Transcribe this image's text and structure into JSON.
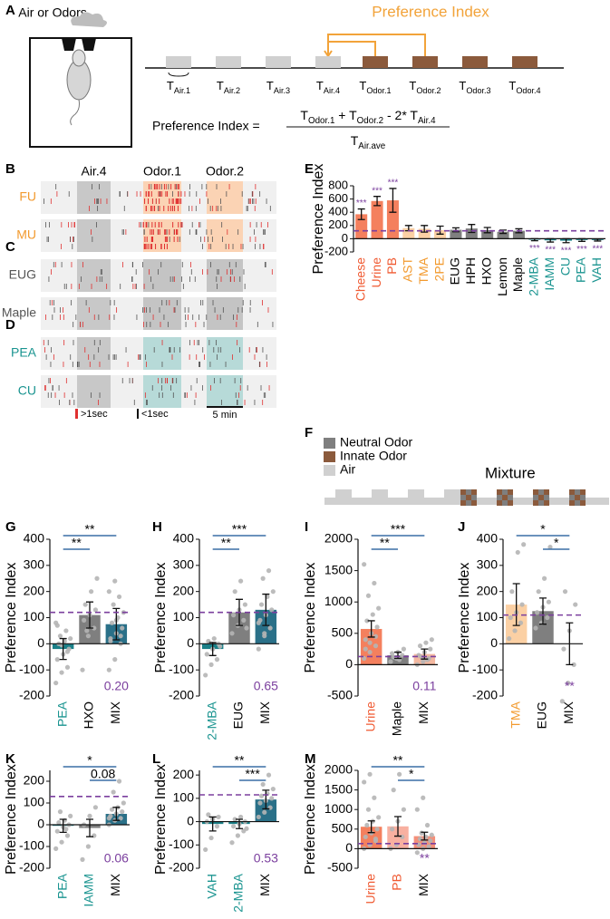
{
  "diagram_a": {
    "panel": "A",
    "source_label": "Air or Odors",
    "index_label": "Preference Index",
    "timeline": [
      {
        "main": "T",
        "sub": "Air.1"
      },
      {
        "main": "T",
        "sub": "Air.2"
      },
      {
        "main": "T",
        "sub": "Air.3"
      },
      {
        "main": "T",
        "sub": "Air.4"
      },
      {
        "main": "T",
        "sub": "Odor.1"
      },
      {
        "main": "T",
        "sub": "Odor.2"
      },
      {
        "main": "T",
        "sub": "Odor.3"
      },
      {
        "main": "T",
        "sub": "Odor.4"
      }
    ],
    "formula": {
      "lhs": "Preference Index =",
      "numerator": [
        {
          "main": "T",
          "sub": "Odor.1"
        },
        {
          "main": " + T",
          "sub": "Odor.2"
        },
        {
          "main": " - 2* T",
          "sub": "Air.4"
        }
      ],
      "denominator": {
        "main": "T",
        "sub": "Air.ave"
      }
    }
  },
  "raster": {
    "panels": [
      "B",
      "C",
      "D"
    ],
    "epochs": [
      "Air.4",
      "Odor.1",
      "Odor.2"
    ],
    "rows": [
      "FU",
      "MU",
      "EUG",
      "Maple",
      "PEA",
      "CU"
    ],
    "row_colors": [
      "#f29a2e",
      "#f29a2e",
      "#555555",
      "#555555",
      "#1a9490",
      "#1a9490"
    ],
    "odor_colors": [
      "#fbd3b4",
      "#fbd3b4",
      "#c4c4c4",
      "#c4c4c4",
      "#b7dad8",
      "#b7dad8"
    ],
    "legend": [
      ">1sec",
      "<1sec",
      "5 min"
    ]
  },
  "diagram_f": {
    "panel": "F",
    "legend": [
      "Neutral Odor",
      "Innate Odor",
      "Air"
    ],
    "legend_colors": [
      "#7f7f7f",
      "#8b5a3c",
      "#d0d0d0"
    ],
    "mixture_label": "Mixture"
  },
  "chart_data": [
    {
      "type": "bar",
      "panel": "E",
      "ylabel": "Preference Index",
      "categories": [
        "Cheese",
        "Urine",
        "PB",
        "AST",
        "TMA",
        "2PE",
        "EUG",
        "HPH",
        "HXO",
        "Lemon",
        "Maple",
        "2-MBA",
        "IAMM",
        "CU",
        "PEA",
        "VAH"
      ],
      "category_colors": [
        "#f05a32",
        "#f05a32",
        "#f05a32",
        "#f29a2e",
        "#f29a2e",
        "#f29a2e",
        "#000000",
        "#000000",
        "#000000",
        "#000000",
        "#000000",
        "#1a9490",
        "#1a9490",
        "#1a9490",
        "#1a9490",
        "#1a9490"
      ],
      "values": [
        370,
        570,
        580,
        160,
        150,
        130,
        135,
        155,
        130,
        105,
        120,
        -15,
        -25,
        -30,
        -20,
        -20
      ],
      "errors": [
        80,
        70,
        180,
        40,
        50,
        60,
        30,
        60,
        40,
        25,
        30,
        15,
        25,
        30,
        20,
        15
      ],
      "bar_colors": [
        "#f4805e",
        "#f4805e",
        "#f4805e",
        "#fbd0a4",
        "#fbd0a4",
        "#fbd0a4",
        "#7f7f7f",
        "#7f7f7f",
        "#7f7f7f",
        "#7f7f7f",
        "#7f7f7f",
        "#1a8088",
        "#1a8088",
        "#1a8088",
        "#1a8088",
        "#1a8088"
      ],
      "significance": [
        "***",
        "***",
        "***",
        null,
        null,
        null,
        null,
        null,
        null,
        null,
        null,
        "***",
        "***",
        "***",
        "***",
        "***"
      ],
      "significance_color": "#7b3f9e",
      "ylim": [
        -200,
        800
      ],
      "yticks": [
        -200,
        0,
        200,
        400,
        600,
        800
      ],
      "reference_line": 120,
      "reference_color": "#7b3f9e"
    },
    {
      "type": "bar",
      "panel": "G",
      "ylabel": "Preference Index",
      "categories": [
        "PEA",
        "HXO",
        "MIX"
      ],
      "category_colors": [
        "#1a9490",
        "#000000",
        "#000000"
      ],
      "values": [
        -20,
        110,
        75
      ],
      "errors": [
        40,
        50,
        60
      ],
      "bar_colors": [
        "#1a8088",
        "#7f7f7f",
        "#2a7088"
      ],
      "points": [
        [
          -150,
          -110,
          -90,
          -60,
          -40,
          -20,
          0,
          10,
          20,
          30,
          50,
          80,
          -5,
          -30,
          70
        ],
        [
          -100,
          30,
          60,
          90,
          110,
          130,
          150,
          200,
          250,
          50
        ],
        [
          -100,
          -60,
          0,
          20,
          40,
          60,
          80,
          100,
          120,
          150,
          180,
          200,
          240,
          30,
          10,
          90
        ]
      ],
      "ylim": [
        -200,
        400
      ],
      "yticks": [
        -200,
        -100,
        0,
        100,
        200,
        300,
        400
      ],
      "reference_line": 120,
      "reference_color": "#7b3f9e",
      "comparisons": [
        {
          "from": "PEA",
          "to": "MIX",
          "label": "**"
        },
        {
          "from": "PEA",
          "to": "HXO",
          "label": "**"
        }
      ],
      "comparison_color": "#3a6ea5",
      "note": "0.20",
      "note_color": "#7b3f9e"
    },
    {
      "type": "bar",
      "panel": "H",
      "ylabel": "Preference Index",
      "categories": [
        "2-MBA",
        "EUG",
        "MIX"
      ],
      "category_colors": [
        "#1a9490",
        "#000000",
        "#000000"
      ],
      "values": [
        -20,
        120,
        130
      ],
      "errors": [
        25,
        50,
        60
      ],
      "bar_colors": [
        "#1a8088",
        "#7f7f7f",
        "#2a7088"
      ],
      "points": [
        [
          -120,
          -80,
          -60,
          -40,
          -20,
          0,
          10,
          20,
          -10
        ],
        [
          40,
          70,
          90,
          110,
          130,
          150,
          200,
          240,
          60
        ],
        [
          -20,
          30,
          60,
          90,
          110,
          130,
          150,
          180,
          200,
          250,
          280,
          80,
          40
        ]
      ],
      "ylim": [
        -200,
        400
      ],
      "yticks": [
        -200,
        -100,
        0,
        100,
        200,
        300,
        400
      ],
      "reference_line": 120,
      "reference_color": "#7b3f9e",
      "comparisons": [
        {
          "from": "2-MBA",
          "to": "MIX",
          "label": "***"
        },
        {
          "from": "2-MBA",
          "to": "EUG",
          "label": "**"
        }
      ],
      "comparison_color": "#3a6ea5",
      "note": "0.65",
      "note_color": "#7b3f9e"
    },
    {
      "type": "bar",
      "panel": "I",
      "ylabel": "Preference Index",
      "categories": [
        "Urine",
        "Maple",
        "MIX"
      ],
      "category_colors": [
        "#f05a32",
        "#000000",
        "#000000"
      ],
      "values": [
        570,
        150,
        170
      ],
      "errors": [
        130,
        50,
        80
      ],
      "bar_colors": [
        "#f4805e",
        "#7f7f7f",
        "#f4b8a0"
      ],
      "points": [
        [
          100,
          200,
          300,
          400,
          500,
          600,
          700,
          800,
          900,
          1100,
          1300,
          1600,
          350,
          450,
          250
        ],
        [
          50,
          100,
          150,
          180,
          200,
          250,
          120,
          80
        ],
        [
          0,
          50,
          100,
          150,
          200,
          250,
          300,
          350,
          400,
          120,
          80
        ]
      ],
      "ylim": [
        -500,
        2000
      ],
      "yticks": [
        -500,
        0,
        500,
        1000,
        1500,
        2000
      ],
      "reference_line": 130,
      "reference_color": "#7b3f9e",
      "comparisons": [
        {
          "from": "Urine",
          "to": "MIX",
          "label": "***"
        },
        {
          "from": "Urine",
          "to": "Maple",
          "label": "**"
        }
      ],
      "comparison_color": "#3a6ea5",
      "note": "0.11",
      "note_color": "#7b3f9e"
    },
    {
      "type": "bar",
      "panel": "J",
      "ylabel": "Preference Index",
      "categories": [
        "TMA",
        "EUG",
        "MIX"
      ],
      "category_colors": [
        "#f29a2e",
        "#000000",
        "#000000"
      ],
      "values": [
        150,
        125,
        0
      ],
      "errors": [
        80,
        50,
        80
      ],
      "bar_colors": [
        "#fbd0a4",
        "#7f7f7f",
        "#c8a890"
      ],
      "points": [
        [
          20,
          50,
          80,
          100,
          120,
          150,
          200,
          350,
          380
        ],
        [
          60,
          80,
          100,
          120,
          140,
          160,
          200,
          250,
          370
        ],
        [
          -220,
          -150,
          -80,
          -20,
          50,
          150,
          200
        ]
      ],
      "ylim": [
        -200,
        400
      ],
      "yticks": [
        -200,
        -100,
        0,
        100,
        200,
        300,
        400
      ],
      "reference_line": 110,
      "reference_color": "#7b3f9e",
      "comparisons": [
        {
          "from": "TMA",
          "to": "MIX",
          "label": "*"
        },
        {
          "from": "EUG",
          "to": "MIX",
          "label": "*"
        }
      ],
      "comparison_color": "#3a6ea5",
      "note": "**",
      "note_color": "#7b3f9e"
    },
    {
      "type": "bar",
      "panel": "K",
      "ylabel": "Preference Index",
      "categories": [
        "PEA",
        "IAMM",
        "MIX"
      ],
      "category_colors": [
        "#1a9490",
        "#1a9490",
        "#000000"
      ],
      "values": [
        -5,
        -15,
        50
      ],
      "errors": [
        30,
        40,
        30
      ],
      "bar_colors": [
        "#1a8088",
        "#7f7f7f",
        "#2a7088"
      ],
      "points": [
        [
          -110,
          -80,
          -50,
          -30,
          -10,
          0,
          10,
          20,
          40,
          60,
          -20
        ],
        [
          -160,
          -100,
          -50,
          0,
          40,
          80
        ],
        [
          0,
          20,
          30,
          40,
          50,
          60,
          70,
          80,
          100,
          150,
          200,
          30
        ]
      ],
      "ylim": [
        -200,
        250
      ],
      "yticks": [
        -200,
        -100,
        0,
        100,
        200
      ],
      "reference_line": 130,
      "reference_color": "#7b3f9e",
      "comparisons": [
        {
          "from": "PEA",
          "to": "MIX",
          "label": "*"
        },
        {
          "from": "IAMM",
          "to": "MIX",
          "label": "0.08"
        }
      ],
      "comparison_color": "#3a6ea5",
      "note": "0.06",
      "note_color": "#7b3f9e"
    },
    {
      "type": "bar",
      "panel": "L",
      "ylabel": "Preference Index",
      "categories": [
        "VAH",
        "2-MBA",
        "MIX"
      ],
      "category_colors": [
        "#1a9490",
        "#1a9490",
        "#000000"
      ],
      "values": [
        -10,
        -10,
        95
      ],
      "errors": [
        30,
        20,
        40
      ],
      "bar_colors": [
        "#1a8088",
        "#1a8088",
        "#2a7088"
      ],
      "points": [
        [
          -120,
          -70,
          -20,
          0,
          10,
          20,
          30
        ],
        [
          -90,
          -60,
          -40,
          -20,
          -10,
          0,
          10,
          20,
          -30
        ],
        [
          20,
          40,
          60,
          80,
          90,
          100,
          110,
          120,
          140,
          160,
          200
        ]
      ],
      "ylim": [
        -200,
        220
      ],
      "yticks": [
        -200,
        -100,
        0,
        100,
        200
      ],
      "reference_line": 115,
      "reference_color": "#7b3f9e",
      "comparisons": [
        {
          "from": "VAH",
          "to": "MIX",
          "label": "**"
        },
        {
          "from": "2-MBA",
          "to": "MIX",
          "label": "***"
        }
      ],
      "comparison_color": "#3a6ea5",
      "note": "0.53",
      "note_color": "#7b3f9e"
    },
    {
      "type": "bar",
      "panel": "M",
      "ylabel": "Preference Index",
      "categories": [
        "Urine",
        "PB",
        "MIX"
      ],
      "category_colors": [
        "#f05a32",
        "#f05a32",
        "#000000"
      ],
      "values": [
        560,
        570,
        320
      ],
      "errors": [
        150,
        250,
        100
      ],
      "bar_colors": [
        "#f4805e",
        "#f8b0a0",
        "#f4907a"
      ],
      "points": [
        [
          0,
          100,
          200,
          300,
          400,
          500,
          600,
          700,
          800,
          1000,
          1300,
          1700,
          1900,
          250
        ],
        [
          0,
          100,
          300,
          500,
          700,
          1000,
          1500,
          1900
        ],
        [
          -100,
          0,
          50,
          100,
          150,
          200,
          250,
          300,
          350,
          400,
          600,
          1000,
          1300
        ]
      ],
      "ylim": [
        -500,
        2000
      ],
      "yticks": [
        -500,
        0,
        500,
        1000,
        1500,
        2000
      ],
      "reference_line": 130,
      "reference_color": "#7b3f9e",
      "comparisons": [
        {
          "from": "Urine",
          "to": "MIX",
          "label": "**"
        },
        {
          "from": "PB",
          "to": "MIX",
          "label": "*"
        }
      ],
      "comparison_color": "#3a6ea5",
      "note": "**",
      "note_color": "#7b3f9e"
    }
  ]
}
